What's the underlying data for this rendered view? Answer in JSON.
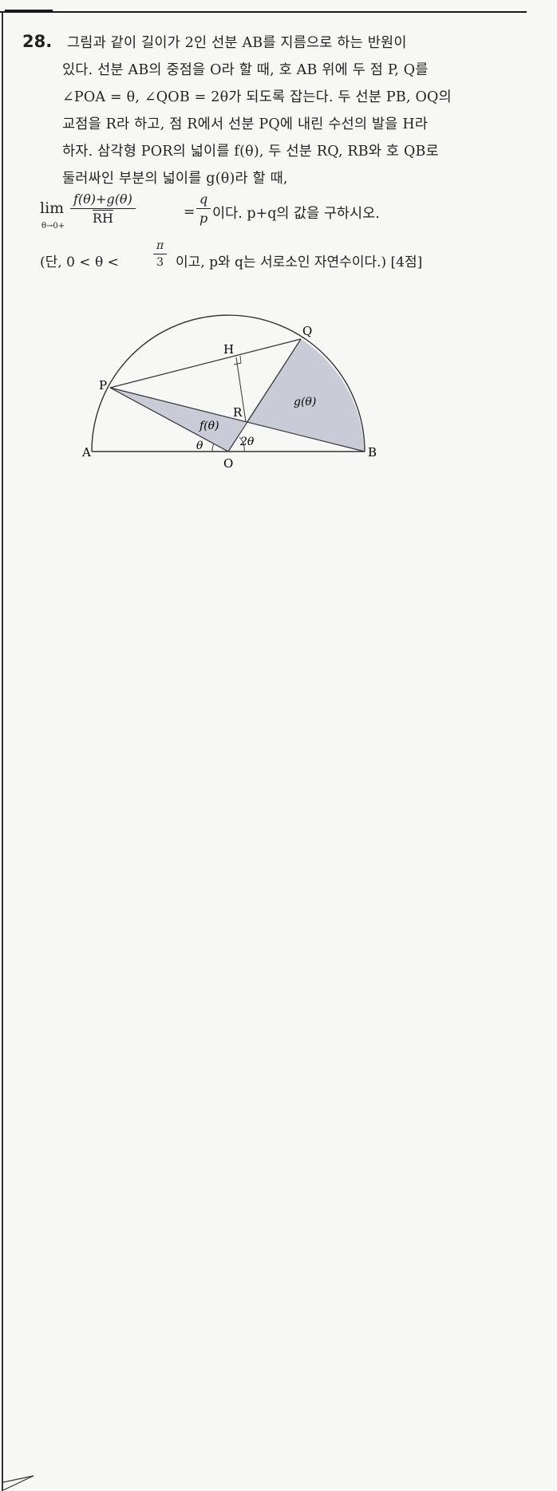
{
  "problem": {
    "number": "28.",
    "lines": [
      "그림과 같이 길이가 2인 선분 AB를 지름으로 하는 반원이",
      "있다. 선분 AB의 중점을 O라 할 때, 호 AB 위에 두 점 P, Q를",
      "∠POA = θ, ∠QOB = 2θ가 되도록 잡는다. 두 선분 PB, OQ의",
      "교점을 R라 하고, 점 R에서 선분 PQ에 내린 수선의 발을 H라",
      "하자. 삼각형 POR의 넓이를 f(θ), 두 선분 RQ, RB와 호 QB로",
      "둘러싸인 부분의 넓이를 g(θ)라 할 때,"
    ],
    "limit": {
      "word": "lim",
      "subscript": "θ→0+",
      "numerator": "f(θ)+g(θ)",
      "denominator": "RH",
      "equals": "=",
      "rhs_numerator": "q",
      "rhs_denominator": "p",
      "tail": "이다. p+q의 값을 구하시오."
    },
    "condition": {
      "prefix": "(단, 0 < θ <",
      "pi_numerator": "π",
      "pi_denominator": "3",
      "suffix": "이고, p와 q는 서로소인 자연수이다.) [4점]"
    }
  },
  "figure": {
    "labels": {
      "A": "A",
      "B": "B",
      "O": "O",
      "P": "P",
      "Q": "Q",
      "R": "R",
      "H": "H",
      "f": "f(θ)",
      "g": "g(θ)",
      "theta": "θ",
      "two_theta": "2θ"
    },
    "shade_color": "#c9cbd6",
    "line_color": "#333333"
  }
}
